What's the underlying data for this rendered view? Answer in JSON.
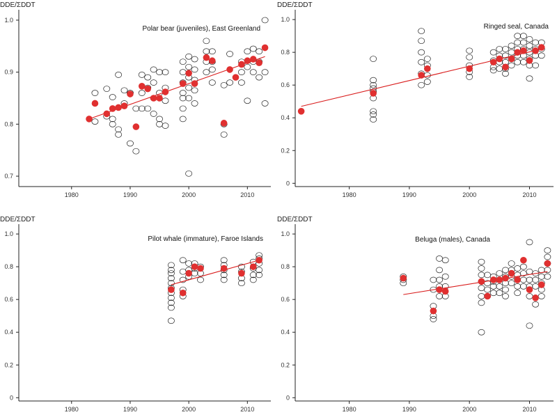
{
  "colors": {
    "mean": "#e03030",
    "trend": "#d91c1c",
    "open": "#222222"
  },
  "chart_data": [
    {
      "type": "scatter",
      "title": "Polar bear (juveniles), East Greenland",
      "ylabel": "DDE/ΣDDT",
      "xlim": [
        1971,
        2014
      ],
      "ylim": [
        0.68,
        1.02
      ],
      "xticks": [
        1980,
        1990,
        2000,
        2010
      ],
      "yticks": [
        0.7,
        0.8,
        0.9,
        1.0
      ],
      "ytick_labels": [
        "0.7",
        "0.8",
        "0.9",
        "1.0"
      ],
      "observations": [
        [
          1984,
          0.86
        ],
        [
          1984,
          0.805
        ],
        [
          1986,
          0.868
        ],
        [
          1986,
          0.815
        ],
        [
          1987,
          0.852
        ],
        [
          1987,
          0.81
        ],
        [
          1987,
          0.8
        ],
        [
          1988,
          0.895
        ],
        [
          1988,
          0.79
        ],
        [
          1988,
          0.78
        ],
        [
          1989,
          0.865
        ],
        [
          1989,
          0.84
        ],
        [
          1990,
          0.86
        ],
        [
          1990,
          0.763
        ],
        [
          1991,
          0.748
        ],
        [
          1991,
          0.83
        ],
        [
          1992,
          0.895
        ],
        [
          1992,
          0.86
        ],
        [
          1992,
          0.83
        ],
        [
          1993,
          0.89
        ],
        [
          1993,
          0.87
        ],
        [
          1993,
          0.83
        ],
        [
          1994,
          0.905
        ],
        [
          1994,
          0.88
        ],
        [
          1994,
          0.85
        ],
        [
          1994,
          0.82
        ],
        [
          1995,
          0.9
        ],
        [
          1995,
          0.86
        ],
        [
          1995,
          0.81
        ],
        [
          1995,
          0.8
        ],
        [
          1996,
          0.9
        ],
        [
          1996,
          0.87
        ],
        [
          1996,
          0.845
        ],
        [
          1996,
          0.797
        ],
        [
          1999,
          0.92
        ],
        [
          1999,
          0.9
        ],
        [
          1999,
          0.88
        ],
        [
          1999,
          0.86
        ],
        [
          1999,
          0.85
        ],
        [
          1999,
          0.83
        ],
        [
          1999,
          0.81
        ],
        [
          2000,
          0.93
        ],
        [
          2000,
          0.91
        ],
        [
          2000,
          0.89
        ],
        [
          2000,
          0.87
        ],
        [
          2000,
          0.85
        ],
        [
          2000,
          0.705
        ],
        [
          2001,
          0.925
        ],
        [
          2001,
          0.905
        ],
        [
          2001,
          0.885
        ],
        [
          2001,
          0.865
        ],
        [
          2001,
          0.84
        ],
        [
          2003,
          0.96
        ],
        [
          2003,
          0.94
        ],
        [
          2003,
          0.92
        ],
        [
          2003,
          0.9
        ],
        [
          2004,
          0.94
        ],
        [
          2004,
          0.92
        ],
        [
          2004,
          0.905
        ],
        [
          2004,
          0.88
        ],
        [
          2006,
          0.875
        ],
        [
          2006,
          0.8
        ],
        [
          2006,
          0.78
        ],
        [
          2007,
          0.935
        ],
        [
          2007,
          0.88
        ],
        [
          2009,
          0.92
        ],
        [
          2009,
          0.9
        ],
        [
          2009,
          0.88
        ],
        [
          2010,
          0.94
        ],
        [
          2010,
          0.91
        ],
        [
          2010,
          0.845
        ],
        [
          2011,
          0.945
        ],
        [
          2011,
          0.92
        ],
        [
          2011,
          0.9
        ],
        [
          2012,
          0.94
        ],
        [
          2012,
          0.92
        ],
        [
          2012,
          0.89
        ],
        [
          2013,
          1.0
        ],
        [
          2013,
          0.9
        ],
        [
          2013,
          0.84
        ]
      ],
      "means": [
        [
          1983,
          0.81
        ],
        [
          1984,
          0.84
        ],
        [
          1986,
          0.82
        ],
        [
          1987,
          0.83
        ],
        [
          1988,
          0.832
        ],
        [
          1989,
          0.835
        ],
        [
          1990,
          0.858
        ],
        [
          1991,
          0.795
        ],
        [
          1992,
          0.873
        ],
        [
          1993,
          0.868
        ],
        [
          1994,
          0.85
        ],
        [
          1995,
          0.85
        ],
        [
          1996,
          0.862
        ],
        [
          1999,
          0.878
        ],
        [
          2000,
          0.898
        ],
        [
          2001,
          0.878
        ],
        [
          2003,
          0.928
        ],
        [
          2004,
          0.922
        ],
        [
          2006,
          0.802
        ],
        [
          2007,
          0.905
        ],
        [
          2008,
          0.89
        ],
        [
          2009,
          0.915
        ],
        [
          2010,
          0.922
        ],
        [
          2011,
          0.925
        ],
        [
          2012,
          0.918
        ],
        [
          2013,
          0.947
        ]
      ],
      "trend": [
        [
          1983,
          0.81
        ],
        [
          2013,
          0.93
        ]
      ]
    },
    {
      "type": "scatter",
      "title": "Ringed seal, Canada",
      "ylabel": "DDE/ΣDDT",
      "xlim": [
        1971,
        2014
      ],
      "ylim": [
        -0.02,
        1.06
      ],
      "xticks": [
        1980,
        1990,
        2000,
        2010
      ],
      "yticks": [
        0,
        0.2,
        0.4,
        0.6,
        0.8,
        1.0
      ],
      "ytick_labels": [
        "0",
        "0.2",
        "0.4",
        "0.6",
        "0.8",
        "1.0"
      ],
      "observations": [
        [
          1984,
          0.76
        ],
        [
          1984,
          0.63
        ],
        [
          1984,
          0.6
        ],
        [
          1984,
          0.58
        ],
        [
          1984,
          0.56
        ],
        [
          1984,
          0.52
        ],
        [
          1984,
          0.44
        ],
        [
          1984,
          0.42
        ],
        [
          1984,
          0.39
        ],
        [
          1992,
          0.93
        ],
        [
          1992,
          0.87
        ],
        [
          1992,
          0.8
        ],
        [
          1992,
          0.74
        ],
        [
          1992,
          0.67
        ],
        [
          1992,
          0.6
        ],
        [
          1993,
          0.76
        ],
        [
          1993,
          0.72
        ],
        [
          1993,
          0.66
        ],
        [
          1993,
          0.62
        ],
        [
          2000,
          0.81
        ],
        [
          2000,
          0.77
        ],
        [
          2000,
          0.72
        ],
        [
          2000,
          0.68
        ],
        [
          2000,
          0.65
        ],
        [
          2004,
          0.8
        ],
        [
          2004,
          0.75
        ],
        [
          2004,
          0.71
        ],
        [
          2004,
          0.69
        ],
        [
          2005,
          0.82
        ],
        [
          2005,
          0.78
        ],
        [
          2005,
          0.74
        ],
        [
          2005,
          0.7
        ],
        [
          2006,
          0.82
        ],
        [
          2006,
          0.78
        ],
        [
          2006,
          0.74
        ],
        [
          2006,
          0.7
        ],
        [
          2006,
          0.67
        ],
        [
          2007,
          0.84
        ],
        [
          2007,
          0.8
        ],
        [
          2007,
          0.76
        ],
        [
          2007,
          0.72
        ],
        [
          2008,
          0.9
        ],
        [
          2008,
          0.86
        ],
        [
          2008,
          0.82
        ],
        [
          2008,
          0.78
        ],
        [
          2008,
          0.74
        ],
        [
          2009,
          0.9
        ],
        [
          2009,
          0.86
        ],
        [
          2009,
          0.82
        ],
        [
          2009,
          0.78
        ],
        [
          2009,
          0.74
        ],
        [
          2010,
          0.88
        ],
        [
          2010,
          0.84
        ],
        [
          2010,
          0.8
        ],
        [
          2010,
          0.76
        ],
        [
          2010,
          0.72
        ],
        [
          2010,
          0.64
        ],
        [
          2011,
          0.86
        ],
        [
          2011,
          0.82
        ],
        [
          2011,
          0.78
        ],
        [
          2011,
          0.72
        ],
        [
          2012,
          0.86
        ],
        [
          2012,
          0.82
        ],
        [
          2012,
          0.78
        ]
      ],
      "means": [
        [
          1972,
          0.44
        ],
        [
          1984,
          0.55
        ],
        [
          1992,
          0.66
        ],
        [
          1993,
          0.7
        ],
        [
          2000,
          0.7
        ],
        [
          2004,
          0.74
        ],
        [
          2005,
          0.76
        ],
        [
          2006,
          0.71
        ],
        [
          2007,
          0.76
        ],
        [
          2008,
          0.8
        ],
        [
          2009,
          0.81
        ],
        [
          2010,
          0.75
        ],
        [
          2011,
          0.81
        ],
        [
          2012,
          0.83
        ]
      ],
      "trend": [
        [
          1972,
          0.47
        ],
        [
          2012,
          0.82
        ]
      ]
    },
    {
      "type": "scatter",
      "title": "Pilot whale (immature), Faroe Islands",
      "ylabel": "DDE/ΣDDT",
      "xlim": [
        1971,
        2014
      ],
      "ylim": [
        -0.02,
        1.06
      ],
      "xticks": [
        1980,
        1990,
        2000,
        2010
      ],
      "yticks": [
        0,
        0.2,
        0.4,
        0.6,
        0.8,
        1.0
      ],
      "ytick_labels": [
        "0",
        "0.2",
        "0.4",
        "0.6",
        "0.8",
        "1.0"
      ],
      "observations": [
        [
          1997,
          0.81
        ],
        [
          1997,
          0.78
        ],
        [
          1997,
          0.76
        ],
        [
          1997,
          0.73
        ],
        [
          1997,
          0.7
        ],
        [
          1997,
          0.67
        ],
        [
          1997,
          0.64
        ],
        [
          1997,
          0.61
        ],
        [
          1997,
          0.58
        ],
        [
          1997,
          0.55
        ],
        [
          1997,
          0.47
        ],
        [
          1999,
          0.84
        ],
        [
          1999,
          0.77
        ],
        [
          1999,
          0.72
        ],
        [
          1999,
          0.66
        ],
        [
          1999,
          0.62
        ],
        [
          2000,
          0.82
        ],
        [
          2000,
          0.78
        ],
        [
          2000,
          0.74
        ],
        [
          2001,
          0.82
        ],
        [
          2001,
          0.79
        ],
        [
          2001,
          0.76
        ],
        [
          2002,
          0.8
        ],
        [
          2002,
          0.76
        ],
        [
          2002,
          0.72
        ],
        [
          2006,
          0.84
        ],
        [
          2006,
          0.81
        ],
        [
          2006,
          0.78
        ],
        [
          2006,
          0.75
        ],
        [
          2006,
          0.72
        ],
        [
          2009,
          0.8
        ],
        [
          2009,
          0.77
        ],
        [
          2009,
          0.73
        ],
        [
          2009,
          0.7
        ],
        [
          2011,
          0.83
        ],
        [
          2011,
          0.79
        ],
        [
          2011,
          0.75
        ],
        [
          2011,
          0.72
        ],
        [
          2012,
          0.87
        ],
        [
          2012,
          0.85
        ],
        [
          2012,
          0.82
        ],
        [
          2012,
          0.78
        ],
        [
          2012,
          0.75
        ]
      ],
      "means": [
        [
          1997,
          0.66
        ],
        [
          1999,
          0.64
        ],
        [
          2000,
          0.76
        ],
        [
          2001,
          0.8
        ],
        [
          2002,
          0.79
        ],
        [
          2006,
          0.79
        ],
        [
          2009,
          0.76
        ],
        [
          2011,
          0.8
        ],
        [
          2012,
          0.84
        ]
      ],
      "trend": [
        [
          1997,
          0.69
        ],
        [
          2012,
          0.84
        ]
      ]
    },
    {
      "type": "scatter",
      "title": "Beluga (males), Canada",
      "ylabel": "DDE/ΣDDT",
      "xlim": [
        1971,
        2014
      ],
      "ylim": [
        -0.02,
        1.06
      ],
      "xticks": [
        1980,
        1990,
        2000,
        2010
      ],
      "yticks": [
        0,
        0.2,
        0.4,
        0.6,
        0.8,
        1.0
      ],
      "ytick_labels": [
        "0",
        "0.2",
        "0.4",
        "0.6",
        "0.8",
        "1.0"
      ],
      "observations": [
        [
          1989,
          0.74
        ],
        [
          1989,
          0.72
        ],
        [
          1989,
          0.7
        ],
        [
          1994,
          0.72
        ],
        [
          1994,
          0.66
        ],
        [
          1994,
          0.56
        ],
        [
          1994,
          0.5
        ],
        [
          1994,
          0.48
        ],
        [
          1995,
          0.85
        ],
        [
          1995,
          0.78
        ],
        [
          1995,
          0.72
        ],
        [
          1995,
          0.68
        ],
        [
          1995,
          0.62
        ],
        [
          1996,
          0.84
        ],
        [
          1996,
          0.74
        ],
        [
          1996,
          0.68
        ],
        [
          1996,
          0.62
        ],
        [
          2002,
          0.83
        ],
        [
          2002,
          0.79
        ],
        [
          2002,
          0.75
        ],
        [
          2002,
          0.71
        ],
        [
          2002,
          0.67
        ],
        [
          2002,
          0.62
        ],
        [
          2002,
          0.58
        ],
        [
          2002,
          0.4
        ],
        [
          2003,
          0.75
        ],
        [
          2003,
          0.7
        ],
        [
          2003,
          0.66
        ],
        [
          2003,
          0.62
        ],
        [
          2004,
          0.74
        ],
        [
          2004,
          0.71
        ],
        [
          2004,
          0.68
        ],
        [
          2004,
          0.64
        ],
        [
          2005,
          0.76
        ],
        [
          2005,
          0.72
        ],
        [
          2005,
          0.68
        ],
        [
          2005,
          0.64
        ],
        [
          2006,
          0.78
        ],
        [
          2006,
          0.74
        ],
        [
          2006,
          0.7
        ],
        [
          2006,
          0.66
        ],
        [
          2006,
          0.62
        ],
        [
          2007,
          0.82
        ],
        [
          2007,
          0.78
        ],
        [
          2007,
          0.74
        ],
        [
          2007,
          0.7
        ],
        [
          2008,
          0.79
        ],
        [
          2008,
          0.75
        ],
        [
          2008,
          0.72
        ],
        [
          2008,
          0.68
        ],
        [
          2008,
          0.64
        ],
        [
          2009,
          0.8
        ],
        [
          2009,
          0.76
        ],
        [
          2009,
          0.72
        ],
        [
          2009,
          0.68
        ],
        [
          2010,
          0.95
        ],
        [
          2010,
          0.77
        ],
        [
          2010,
          0.72
        ],
        [
          2010,
          0.68
        ],
        [
          2010,
          0.62
        ],
        [
          2010,
          0.44
        ],
        [
          2011,
          0.76
        ],
        [
          2011,
          0.72
        ],
        [
          2011,
          0.68
        ],
        [
          2011,
          0.57
        ],
        [
          2012,
          0.78
        ],
        [
          2012,
          0.74
        ],
        [
          2012,
          0.7
        ],
        [
          2012,
          0.66
        ],
        [
          2012,
          0.62
        ],
        [
          2013,
          0.9
        ],
        [
          2013,
          0.86
        ],
        [
          2013,
          0.82
        ],
        [
          2013,
          0.78
        ],
        [
          2013,
          0.74
        ]
      ],
      "means": [
        [
          1989,
          0.73
        ],
        [
          1994,
          0.53
        ],
        [
          1995,
          0.66
        ],
        [
          1996,
          0.65
        ],
        [
          2002,
          0.71
        ],
        [
          2003,
          0.62
        ],
        [
          2004,
          0.72
        ],
        [
          2005,
          0.72
        ],
        [
          2006,
          0.73
        ],
        [
          2007,
          0.76
        ],
        [
          2008,
          0.72
        ],
        [
          2009,
          0.84
        ],
        [
          2010,
          0.66
        ],
        [
          2011,
          0.61
        ],
        [
          2012,
          0.69
        ],
        [
          2013,
          0.82
        ]
      ],
      "trend": [
        [
          1989,
          0.63
        ],
        [
          2013,
          0.77
        ]
      ]
    }
  ]
}
